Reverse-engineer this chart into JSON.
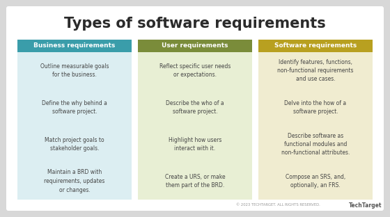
{
  "title": "Types of software requirements",
  "title_fontsize": 15,
  "title_fontweight": "bold",
  "title_color": "#2b2b2b",
  "background_color": "#d8d8d8",
  "card_background_color": "#ffffff",
  "columns": [
    {
      "header": "Business requirements",
      "header_bg": "#3a9daa",
      "header_color": "#ffffff",
      "body_bg": "#dceef2",
      "items": [
        "Outline measurable goals\nfor the business.",
        "Define the why behind a\nsoftware project.",
        "Match project goals to\nstakeholder goals.",
        "Maintain a BRD with\nrequirements, updates\nor changes."
      ]
    },
    {
      "header": "User requirements",
      "header_bg": "#7a8c3a",
      "header_color": "#ffffff",
      "body_bg": "#e8efd4",
      "items": [
        "Reflect specific user needs\nor expectations.",
        "Describe the who of a\nsoftware project.",
        "Highlight how users\ninteract with it.",
        "Create a URS, or make\nthem part of the BRD."
      ]
    },
    {
      "header": "Software requirements",
      "header_bg": "#b8a020",
      "header_color": "#ffffff",
      "body_bg": "#f0ecd0",
      "items": [
        "Identify features, functions,\nnon-functional requirements\nand use cases.",
        "Delve into the how of a\nsoftware project.",
        "Describe software as\nfunctional modules and\nnon-functional attributes.",
        "Compose an SRS, and,\noptionally, an FRS."
      ]
    }
  ],
  "footer_text": "© 2023 TECHTARGET. ALL RIGHTS RESERVED.",
  "footer_brand": "TechTarget",
  "item_fontsize": 5.5,
  "item_color": "#444444",
  "header_fontsize": 6.5
}
